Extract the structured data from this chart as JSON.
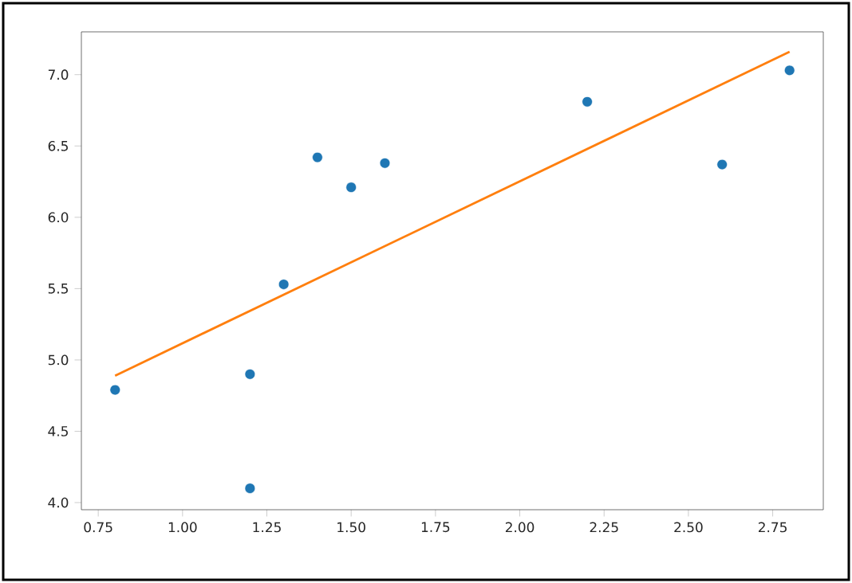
{
  "chart_data": {
    "type": "scatter",
    "xlim": [
      0.7,
      2.9
    ],
    "ylim": [
      3.95,
      7.3
    ],
    "xticks": [
      0.75,
      {
        "value": 1.0,
        "label": "1.00"
      },
      1.25,
      {
        "value": 1.5,
        "label": "1.50"
      },
      1.75,
      {
        "value": 2.0,
        "label": "2.00"
      },
      2.25,
      {
        "value": 2.5,
        "label": "2.50"
      },
      2.75
    ],
    "yticks": [
      {
        "value": 4.0,
        "label": "4.0"
      },
      4.5,
      {
        "value": 5.0,
        "label": "5.0"
      },
      5.5,
      {
        "value": 6.0,
        "label": "6.0"
      },
      6.5,
      {
        "value": 7.0,
        "label": "7.0"
      }
    ],
    "series": [
      {
        "color": "#1f77b4",
        "marker": "circle",
        "x": [
          0.8,
          1.2,
          1.2,
          1.3,
          1.4,
          1.5,
          1.6,
          2.2,
          2.6,
          2.8
        ],
        "values": [
          4.79,
          4.9,
          4.1,
          5.53,
          6.42,
          6.21,
          6.38,
          6.81,
          6.37,
          7.03
        ]
      },
      {
        "type": "line",
        "color": "#ff7f0e",
        "line_style": "solid",
        "x": [
          0.8,
          2.8
        ],
        "values": [
          4.89,
          7.16
        ]
      }
    ]
  }
}
